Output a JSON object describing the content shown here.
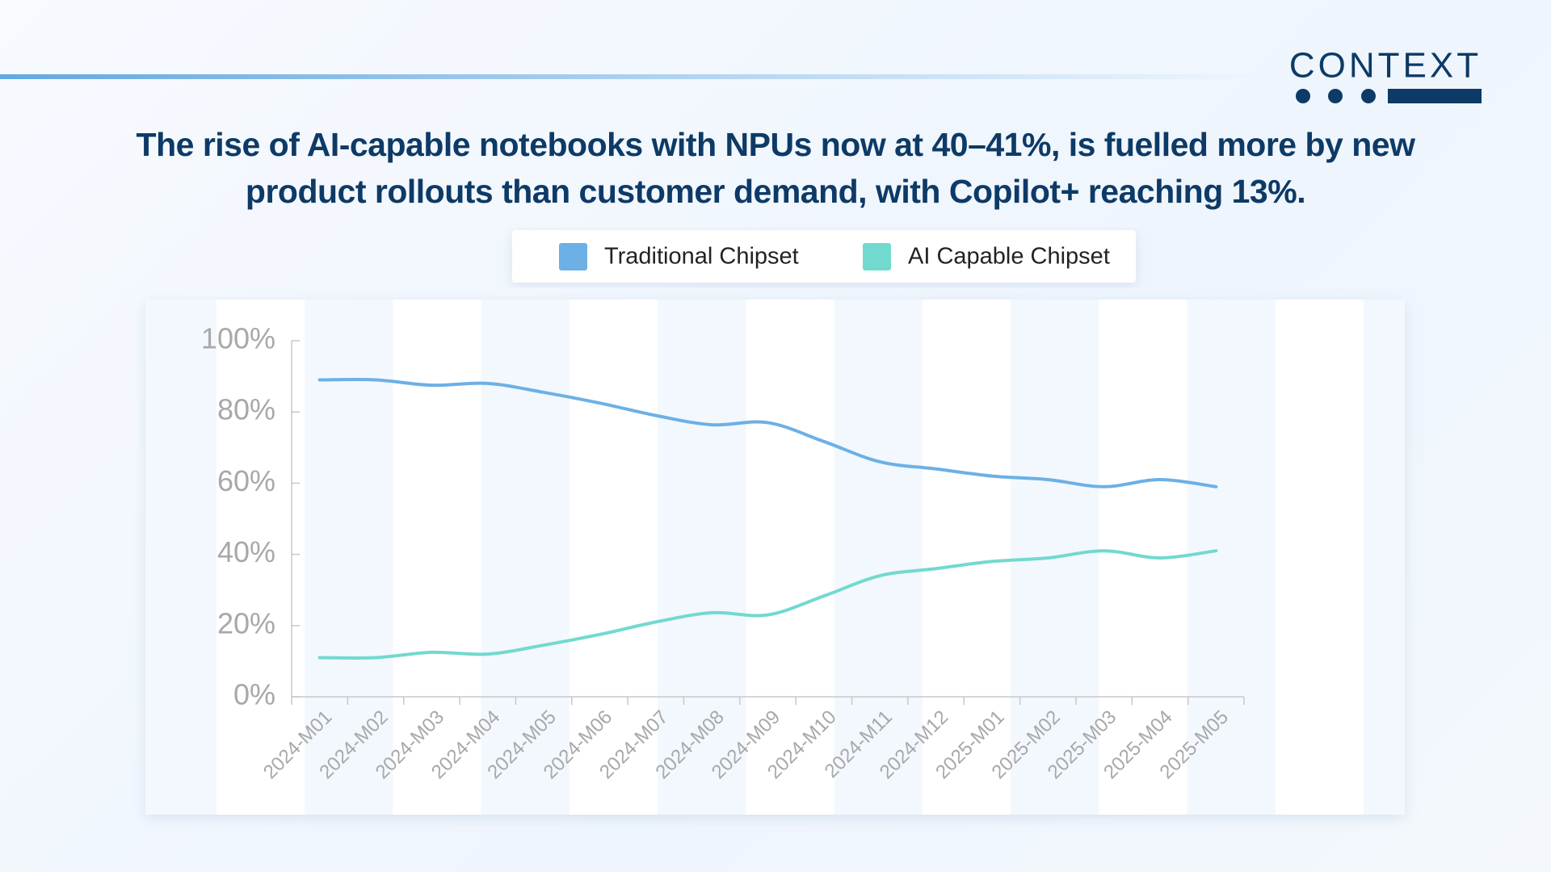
{
  "logo": "CONTEXT",
  "chart_data": {
    "type": "line",
    "title": "The rise of AI-capable notebooks with NPUs now at 40–41%, is fuelled more by new product rollouts than customer demand, with Copilot+ reaching 13%.",
    "categories": [
      "2024-M01",
      "2024-M02",
      "2024-M03",
      "2024-M04",
      "2024-M05",
      "2024-M06",
      "2024-M07",
      "2024-M08",
      "2024-M09",
      "2024-M10",
      "2024-M11",
      "2024-M12",
      "2025-M01",
      "2025-M02",
      "2025-M03",
      "2025-M04",
      "2025-M05"
    ],
    "series": [
      {
        "name": "Traditional Chipset",
        "color": "#6cb0e6",
        "values": [
          89,
          89,
          87.5,
          88,
          85.5,
          82.5,
          79,
          76.4,
          77,
          71.7,
          66,
          64,
          62,
          61,
          59,
          61,
          59
        ]
      },
      {
        "name": "AI Capable Chipset",
        "color": "#72d9cf",
        "values": [
          11,
          11,
          12.5,
          12,
          14.5,
          17.5,
          21,
          23.6,
          23,
          28.3,
          34,
          36,
          38,
          39,
          41,
          39,
          41
        ]
      }
    ],
    "ylim": [
      0,
      100
    ],
    "yticks": [
      {
        "value": 0,
        "label": "0%"
      },
      {
        "value": 20,
        "label": "20%"
      },
      {
        "value": 40,
        "label": "40%"
      },
      {
        "value": 60,
        "label": "60%"
      },
      {
        "value": 80,
        "label": "80%"
      },
      {
        "value": 100,
        "label": "100%"
      }
    ],
    "legend": "top"
  }
}
